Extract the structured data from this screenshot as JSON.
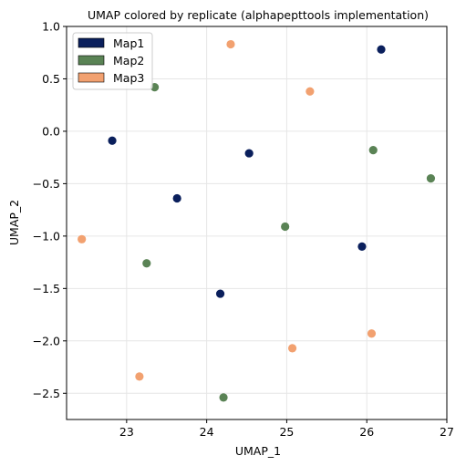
{
  "chart_data": {
    "type": "scatter",
    "title": "UMAP colored by replicate (alphapepttools implementation)",
    "xlabel": "UMAP_1",
    "ylabel": "UMAP_2",
    "xlim": [
      22.25,
      27.0
    ],
    "ylim": [
      -2.75,
      1.0
    ],
    "xticks": [
      23,
      24,
      25,
      26,
      27
    ],
    "yticks": [
      1.0,
      0.5,
      0.0,
      -0.5,
      -1.0,
      -1.5,
      -2.0,
      -2.5
    ],
    "xtick_labels": [
      "23",
      "24",
      "25",
      "26",
      "27"
    ],
    "ytick_labels": [
      "1.0",
      "0.5",
      "0.0",
      "−0.5",
      "−1.0",
      "−1.5",
      "−2.0",
      "−2.5"
    ],
    "grid": true,
    "legend_position": "top-left",
    "series": [
      {
        "name": "Map1",
        "color": "#0a1f5c",
        "points": [
          {
            "x": 26.18,
            "y": 0.78
          },
          {
            "x": 22.82,
            "y": -0.09
          },
          {
            "x": 24.53,
            "y": -0.21
          },
          {
            "x": 23.63,
            "y": -0.64
          },
          {
            "x": 25.94,
            "y": -1.1
          },
          {
            "x": 24.17,
            "y": -1.55
          }
        ]
      },
      {
        "name": "Map2",
        "color": "#5a8355",
        "points": [
          {
            "x": 23.35,
            "y": 0.42
          },
          {
            "x": 26.08,
            "y": -0.18
          },
          {
            "x": 26.8,
            "y": -0.45
          },
          {
            "x": 24.98,
            "y": -0.91
          },
          {
            "x": 23.25,
            "y": -1.26
          },
          {
            "x": 24.21,
            "y": -2.54
          }
        ]
      },
      {
        "name": "Map3",
        "color": "#f2a170",
        "points": [
          {
            "x": 24.3,
            "y": 0.83
          },
          {
            "x": 25.29,
            "y": 0.38
          },
          {
            "x": 22.44,
            "y": -1.03
          },
          {
            "x": 26.06,
            "y": -1.93
          },
          {
            "x": 25.07,
            "y": -2.07
          },
          {
            "x": 23.16,
            "y": -2.34
          }
        ]
      }
    ]
  }
}
